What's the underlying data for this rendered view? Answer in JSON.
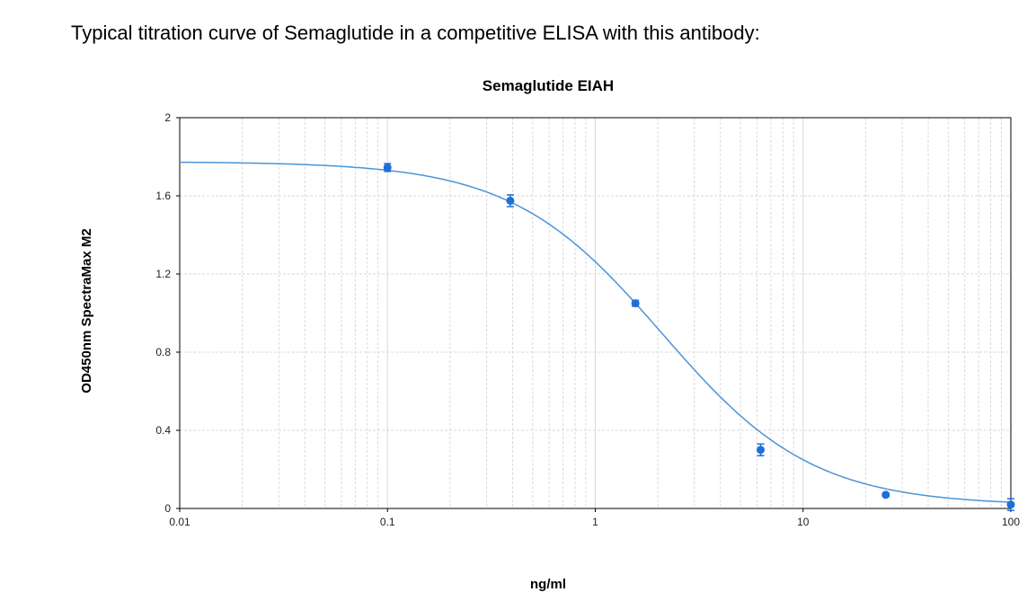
{
  "caption": "Typical titration curve of Semaglutide in a competitive ELISA with this antibody:",
  "chart_data": {
    "type": "scatter",
    "title": "Semaglutide EIAH",
    "xlabel": "ng/ml",
    "ylabel": "OD450nm SpectraMax M2",
    "x_scale": "log",
    "xlim": [
      0.01,
      100
    ],
    "ylim": [
      0,
      2
    ],
    "x_ticks": [
      {
        "value": 0.01,
        "label": "0.01"
      },
      {
        "value": 0.1,
        "label": "0.1"
      },
      {
        "value": 1,
        "label": "1"
      },
      {
        "value": 10,
        "label": "10"
      },
      {
        "value": 100,
        "label": "100"
      }
    ],
    "y_ticks": [
      {
        "value": 0,
        "label": "0"
      },
      {
        "value": 0.4,
        "label": "0.4"
      },
      {
        "value": 0.8,
        "label": "0.8"
      },
      {
        "value": 1.2,
        "label": "1.2"
      },
      {
        "value": 1.6,
        "label": "1.6"
      },
      {
        "value": 2,
        "label": "2"
      }
    ],
    "grid": true,
    "color": "#1f6fd6",
    "curve_color": "#4a95d8",
    "points": [
      {
        "x": 0.1,
        "y": 1.745,
        "err": 0.02
      },
      {
        "x": 0.39,
        "y": 1.575,
        "err": 0.03
      },
      {
        "x": 1.56,
        "y": 1.05,
        "err": 0.015
      },
      {
        "x": 6.25,
        "y": 0.3,
        "err": 0.03
      },
      {
        "x": 25,
        "y": 0.07,
        "err": 0.008
      },
      {
        "x": 100,
        "y": 0.02,
        "err": 0.03
      }
    ],
    "fit_curve": {
      "top": 1.775,
      "bottom": 0.015,
      "ec50": 2.1,
      "hill": 1.2
    }
  }
}
